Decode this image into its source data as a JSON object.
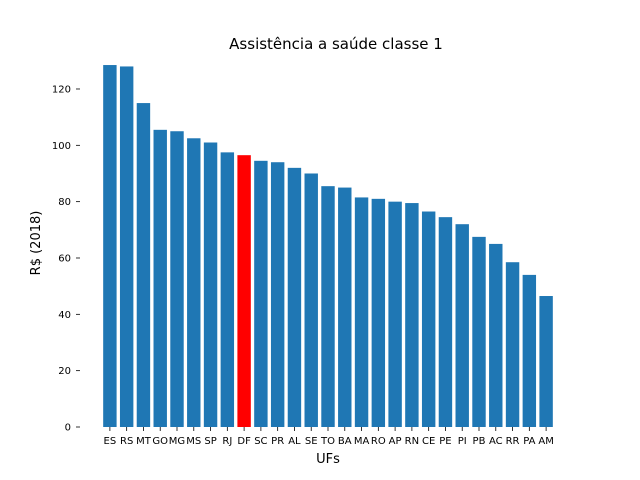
{
  "chart_data": {
    "type": "bar",
    "title": "Assistência a saúde classe 1",
    "xlabel": "UFs",
    "ylabel": "R$ (2018)",
    "ylim": [
      0,
      131
    ],
    "yticks": [
      0,
      20,
      40,
      60,
      80,
      100,
      120
    ],
    "grid": false,
    "categories": [
      "ES",
      "RS",
      "MT",
      "GO",
      "MG",
      "MS",
      "SP",
      "RJ",
      "DF",
      "SC",
      "PR",
      "AL",
      "SE",
      "TO",
      "BA",
      "MA",
      "RO",
      "AP",
      "RN",
      "CE",
      "PE",
      "PI",
      "PB",
      "AC",
      "RR",
      "PA",
      "AM"
    ],
    "values": [
      128.5,
      128.0,
      115.0,
      105.5,
      105.0,
      102.5,
      101.0,
      97.5,
      96.5,
      94.5,
      94.0,
      92.0,
      90.0,
      85.5,
      85.0,
      81.5,
      81.0,
      80.0,
      79.5,
      76.5,
      74.5,
      72.0,
      67.5,
      65.0,
      58.5,
      54.0,
      46.5
    ],
    "highlight_category": "DF",
    "colors": {
      "bar": "#1f77b4",
      "highlight": "#ff0000"
    }
  }
}
